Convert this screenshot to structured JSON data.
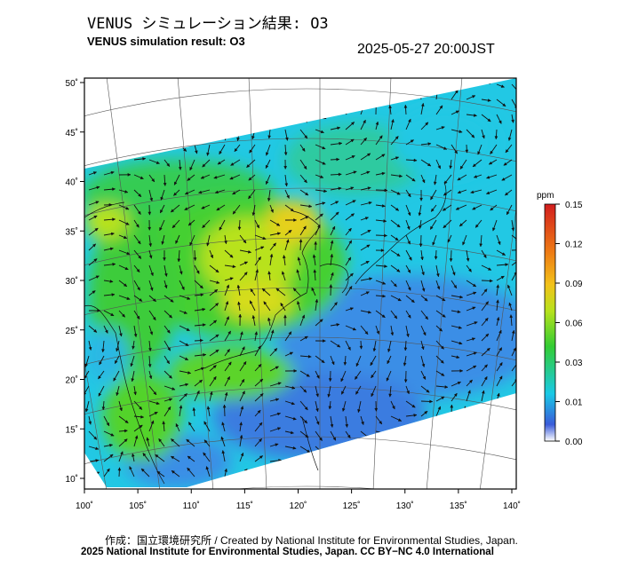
{
  "header": {
    "title_jp": "VENUS シミュレーション結果: O3",
    "title_en": "VENUS simulation result: O3",
    "timestamp": "2025-05-27 20:00JST"
  },
  "map": {
    "lon_ticks": [
      "100˚",
      "105˚",
      "110˚",
      "115˚",
      "120˚",
      "125˚",
      "130˚",
      "135˚",
      "140˚"
    ],
    "lat_ticks": [
      "50˚",
      "45˚",
      "40˚",
      "35˚",
      "30˚",
      "25˚",
      "20˚",
      "15˚",
      "10˚"
    ],
    "lon_range": [
      100,
      141
    ],
    "lat_range": [
      9,
      50
    ]
  },
  "colorbar": {
    "unit": "ppm",
    "tick_labels": [
      "0.15",
      "0.12",
      "0.09",
      "0.06",
      "0.03",
      "0.01",
      "0.00"
    ],
    "colors": [
      "#ffffff",
      "#3a5bd9",
      "#19c9e6",
      "#33cc33",
      "#b8e21c",
      "#f2c21a",
      "#ee7a14",
      "#d21e1e"
    ]
  },
  "footer": {
    "credit_line": "作成：国立環境研究所 / Created by National Institute for Environmental Studies, Japan.",
    "copyright_line": "2025 National Institute for Environmental Studies, Japan. CC BY−NC 4.0 International"
  }
}
